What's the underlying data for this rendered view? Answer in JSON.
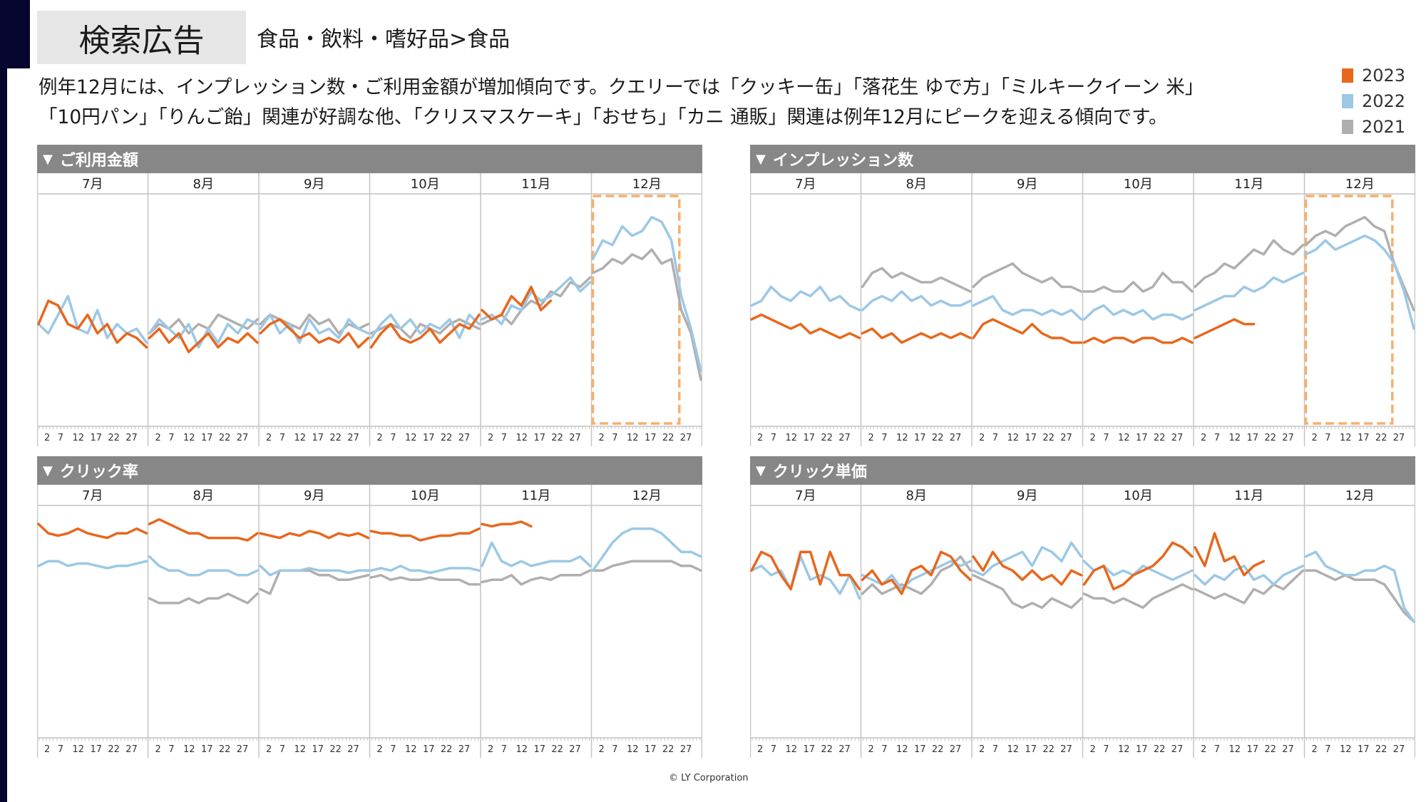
{
  "header": {
    "title": "検索広告",
    "breadcrumb": "食品・飲料・嗜好品>食品"
  },
  "description": {
    "line1": "例年12月には、インプレッション数・ご利用金額が増加傾向です。クエリーでは「クッキー缶」「落花生 ゆで方」「ミルキークイーン 米」",
    "line2": "「10円パン」「りんご飴」関連が好調な他、「クリスマスケーキ」「おせち」「カニ 通販」関連は例年12月にピークを迎える傾向です。"
  },
  "legend": [
    {
      "label": "2023",
      "color": "#e8671c"
    },
    {
      "label": "2022",
      "color": "#9cc8e6"
    },
    {
      "label": "2021",
      "color": "#b1aeae"
    }
  ],
  "footer": "© LY Corporation",
  "highlight_color": "#f5b06e",
  "chart_data": [
    {
      "type": "line",
      "title": "ご利用金額",
      "icon": "triangle-down",
      "categories": [
        "7月",
        "8月",
        "9月",
        "10月",
        "11月",
        "12月"
      ],
      "x_tick_labels": [
        "2",
        "7",
        "12",
        "17",
        "22",
        "27"
      ],
      "ylim": [
        0,
        100
      ],
      "y_note": "relative scale, no y-axis labels shown",
      "highlight_month": "12月",
      "series": [
        {
          "name": "2023",
          "color": "#e8671c",
          "values": [
            [
              44,
              54,
              52,
              44,
              42,
              48,
              40,
              44,
              36,
              40,
              38,
              34
            ],
            [
              38,
              42,
              36,
              40,
              32,
              36,
              40,
              34,
              38,
              36,
              40,
              36
            ],
            [
              40,
              44,
              46,
              42,
              38,
              40,
              36,
              38,
              36,
              40,
              34,
              38
            ],
            [
              34,
              40,
              44,
              38,
              36,
              38,
              42,
              36,
              40,
              44,
              42,
              48
            ],
            [
              50,
              46,
              48,
              56,
              52,
              60,
              50,
              54
            ],
            []
          ]
        },
        {
          "name": "2022",
          "color": "#9cc8e6",
          "values": [
            [
              44,
              40,
              48,
              56,
              42,
              40,
              50,
              38,
              44,
              40,
              42,
              36
            ],
            [
              40,
              46,
              42,
              38,
              44,
              34,
              42,
              36,
              44,
              40,
              46,
              44
            ],
            [
              42,
              48,
              40,
              44,
              36,
              46,
              40,
              42,
              38,
              46,
              42,
              40
            ],
            [
              38,
              44,
              48,
              42,
              46,
              40,
              44,
              42,
              46,
              38,
              48,
              44
            ],
            [
              46,
              48,
              44,
              52,
              50,
              58,
              54,
              56,
              60,
              64,
              58,
              62
            ],
            [
              72,
              80,
              78,
              86,
              82,
              84,
              90,
              88,
              80,
              56,
              42,
              24
            ]
          ]
        },
        {
          "name": "2021",
          "color": "#b1aeae",
          "values": [
            [],
            [
              40,
              44,
              42,
              46,
              40,
              44,
              42,
              48,
              46,
              44,
              42,
              46
            ],
            [
              44,
              48,
              46,
              44,
              42,
              48,
              44,
              46,
              40,
              44,
              42,
              44
            ],
            [
              40,
              42,
              44,
              42,
              38,
              44,
              42,
              40,
              44,
              46,
              44,
              42
            ],
            [
              44,
              46,
              48,
              44,
              50,
              54,
              52,
              58,
              56,
              62,
              60,
              64
            ],
            [
              66,
              68,
              72,
              70,
              74,
              72,
              76,
              70,
              72,
              50,
              40,
              20
            ]
          ]
        }
      ]
    },
    {
      "type": "line",
      "title": "インプレッション数",
      "icon": "triangle-down",
      "categories": [
        "7月",
        "8月",
        "9月",
        "10月",
        "11月",
        "12月"
      ],
      "x_tick_labels": [
        "2",
        "7",
        "12",
        "17",
        "22",
        "27"
      ],
      "ylim": [
        0,
        100
      ],
      "y_note": "relative scale, no y-axis labels shown",
      "highlight_month": "12月",
      "series": [
        {
          "name": "2023",
          "color": "#e8671c",
          "values": [
            [
              46,
              48,
              46,
              44,
              42,
              44,
              40,
              42,
              40,
              38,
              40,
              38
            ],
            [
              40,
              42,
              38,
              40,
              36,
              38,
              40,
              38,
              40,
              38,
              40,
              38
            ],
            [
              38,
              44,
              46,
              44,
              42,
              40,
              44,
              40,
              38,
              38,
              36,
              36
            ],
            [
              36,
              38,
              36,
              38,
              38,
              36,
              38,
              38,
              36,
              36,
              38,
              36
            ],
            [
              38,
              40,
              42,
              44,
              46,
              44,
              44
            ],
            []
          ]
        },
        {
          "name": "2022",
          "color": "#9cc8e6",
          "values": [
            [
              52,
              54,
              60,
              56,
              54,
              58,
              56,
              60,
              54,
              56,
              52,
              50
            ],
            [
              50,
              54,
              56,
              54,
              58,
              54,
              56,
              52,
              54,
              52,
              52,
              54
            ],
            [
              52,
              54,
              56,
              50,
              48,
              50,
              50,
              48,
              50,
              48,
              50,
              46
            ],
            [
              46,
              50,
              52,
              48,
              50,
              48,
              50,
              46,
              48,
              48,
              46,
              48
            ],
            [
              50,
              52,
              54,
              56,
              56,
              60,
              58,
              60,
              64,
              62,
              64,
              66
            ],
            [
              74,
              76,
              80,
              76,
              78,
              80,
              82,
              80,
              76,
              70,
              58,
              42
            ]
          ]
        },
        {
          "name": "2021",
          "color": "#b1aeae",
          "values": [
            [],
            [
              60,
              66,
              68,
              64,
              66,
              64,
              62,
              62,
              64,
              62,
              60,
              58
            ],
            [
              60,
              64,
              66,
              68,
              70,
              66,
              64,
              62,
              64,
              60,
              60,
              58
            ],
            [
              58,
              58,
              60,
              58,
              58,
              62,
              58,
              60,
              66,
              62,
              62,
              58
            ],
            [
              60,
              64,
              66,
              70,
              68,
              72,
              76,
              74,
              80,
              76,
              74,
              78
            ],
            [
              78,
              82,
              84,
              82,
              86,
              88,
              90,
              86,
              84,
              70,
              60,
              50
            ]
          ]
        }
      ]
    },
    {
      "type": "line",
      "title": "クリック率",
      "icon": "triangle-down",
      "categories": [
        "7月",
        "8月",
        "9月",
        "10月",
        "11月",
        "12月"
      ],
      "x_tick_labels": [
        "2",
        "7",
        "12",
        "17",
        "22",
        "27"
      ],
      "ylim": [
        0,
        100
      ],
      "y_note": "relative scale, no y-axis labels shown",
      "highlight_month": null,
      "series": [
        {
          "name": "2023",
          "color": "#e8671c",
          "values": [
            [
              92,
              88,
              87,
              88,
              90,
              88,
              87,
              86,
              88,
              88,
              90,
              88
            ],
            [
              92,
              94,
              92,
              90,
              88,
              88,
              86,
              86,
              86,
              86,
              85,
              88
            ],
            [
              88,
              87,
              86,
              88,
              87,
              89,
              88,
              86,
              88,
              87,
              88,
              86
            ],
            [
              89,
              88,
              88,
              87,
              87,
              85,
              86,
              87,
              87,
              88,
              88,
              90
            ],
            [
              92,
              91,
              92,
              92,
              93,
              91
            ],
            []
          ]
        },
        {
          "name": "2022",
          "color": "#9cc8e6",
          "values": [
            [
              74,
              76,
              76,
              74,
              75,
              75,
              74,
              73,
              74,
              74,
              75,
              76
            ],
            [
              78,
              74,
              72,
              72,
              70,
              70,
              72,
              72,
              72,
              70,
              70,
              72
            ],
            [
              74,
              70,
              72,
              72,
              72,
              73,
              72,
              72,
              72,
              71,
              72,
              72
            ],
            [
              72,
              73,
              72,
              74,
              72,
              72,
              71,
              72,
              73,
              73,
              73,
              72
            ],
            [
              74,
              84,
              76,
              74,
              76,
              74,
              75,
              76,
              76,
              76,
              78,
              74
            ],
            [
              72,
              78,
              84,
              88,
              90,
              90,
              90,
              88,
              84,
              80,
              80,
              78
            ]
          ]
        },
        {
          "name": "2021",
          "color": "#b1aeae",
          "values": [
            [],
            [
              60,
              58,
              58,
              58,
              60,
              58,
              60,
              60,
              62,
              60,
              58,
              62
            ],
            [
              64,
              62,
              72,
              72,
              72,
              72,
              70,
              70,
              68,
              68,
              69,
              70
            ],
            [
              69,
              70,
              68,
              69,
              68,
              68,
              69,
              68,
              68,
              68,
              66,
              66
            ],
            [
              67,
              68,
              68,
              70,
              66,
              68,
              69,
              68,
              70,
              70,
              70,
              72
            ],
            [
              72,
              72,
              74,
              75,
              76,
              76,
              76,
              76,
              76,
              74,
              74,
              72
            ]
          ]
        }
      ]
    },
    {
      "type": "line",
      "title": "クリック単価",
      "icon": "triangle-down",
      "categories": [
        "7月",
        "8月",
        "9月",
        "10月",
        "11月",
        "12月"
      ],
      "x_tick_labels": [
        "2",
        "7",
        "12",
        "17",
        "22",
        "27"
      ],
      "ylim": [
        0,
        100
      ],
      "y_note": "relative scale, no y-axis labels shown",
      "highlight_month": null,
      "series": [
        {
          "name": "2023",
          "color": "#e8671c",
          "values": [
            [
              72,
              80,
              78,
              70,
              64,
              80,
              80,
              66,
              80,
              70,
              70,
              64
            ],
            [
              68,
              72,
              66,
              68,
              62,
              72,
              74,
              70,
              80,
              78,
              72,
              68
            ],
            [
              78,
              72,
              80,
              74,
              72,
              68,
              72,
              68,
              70,
              66,
              72,
              70
            ],
            [
              66,
              72,
              74,
              64,
              66,
              70,
              72,
              74,
              78,
              84,
              82,
              78
            ],
            [
              82,
              74,
              88,
              76,
              78,
              70,
              74,
              76
            ],
            []
          ]
        },
        {
          "name": "2022",
          "color": "#9cc8e6",
          "values": [
            [
              72,
              74,
              70,
              72,
              64,
              78,
              68,
              70,
              68,
              62,
              70,
              60
            ],
            [
              70,
              68,
              66,
              70,
              64,
              68,
              70,
              72,
              74,
              76,
              74,
              76
            ],
            [
              72,
              70,
              74,
              76,
              78,
              80,
              74,
              82,
              80,
              76,
              84,
              78
            ],
            [
              76,
              72,
              74,
              70,
              72,
              70,
              74,
              72,
              70,
              68,
              70,
              72
            ],
            [
              70,
              66,
              70,
              68,
              72,
              74,
              68,
              70,
              66,
              70,
              72,
              74
            ],
            [
              78,
              80,
              74,
              72,
              70,
              70,
              72,
              72,
              74,
              72,
              56,
              50
            ]
          ]
        },
        {
          "name": "2021",
          "color": "#b1aeae",
          "values": [
            [],
            [
              62,
              66,
              62,
              64,
              66,
              64,
              62,
              66,
              72,
              74,
              78,
              72
            ],
            [
              70,
              68,
              66,
              64,
              58,
              56,
              58,
              56,
              60,
              58,
              56,
              60
            ],
            [
              62,
              60,
              60,
              58,
              60,
              58,
              56,
              60,
              62,
              64,
              66,
              64
            ],
            [
              64,
              62,
              60,
              62,
              60,
              58,
              64,
              62,
              66,
              64,
              68,
              72
            ],
            [
              72,
              72,
              70,
              68,
              70,
              68,
              68,
              68,
              66,
              60,
              54,
              50
            ]
          ]
        }
      ]
    }
  ]
}
